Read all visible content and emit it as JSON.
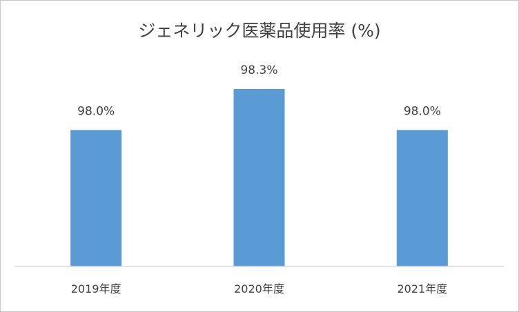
{
  "chart_data": {
    "type": "bar",
    "title": "ジェネリック医薬品使用率 (%)",
    "categories": [
      "2019年度",
      "2020年度",
      "2021年度"
    ],
    "values": [
      98.0,
      98.3,
      98.0
    ],
    "data_labels": [
      "98.0%",
      "98.3%",
      "98.0%"
    ],
    "xlabel": "",
    "ylabel": "",
    "y_axis_visible": false,
    "grid": false,
    "legend": "none",
    "colors": {
      "bar": "#5B9BD5",
      "axis": "#d9d9d9",
      "text": "#404040"
    }
  }
}
